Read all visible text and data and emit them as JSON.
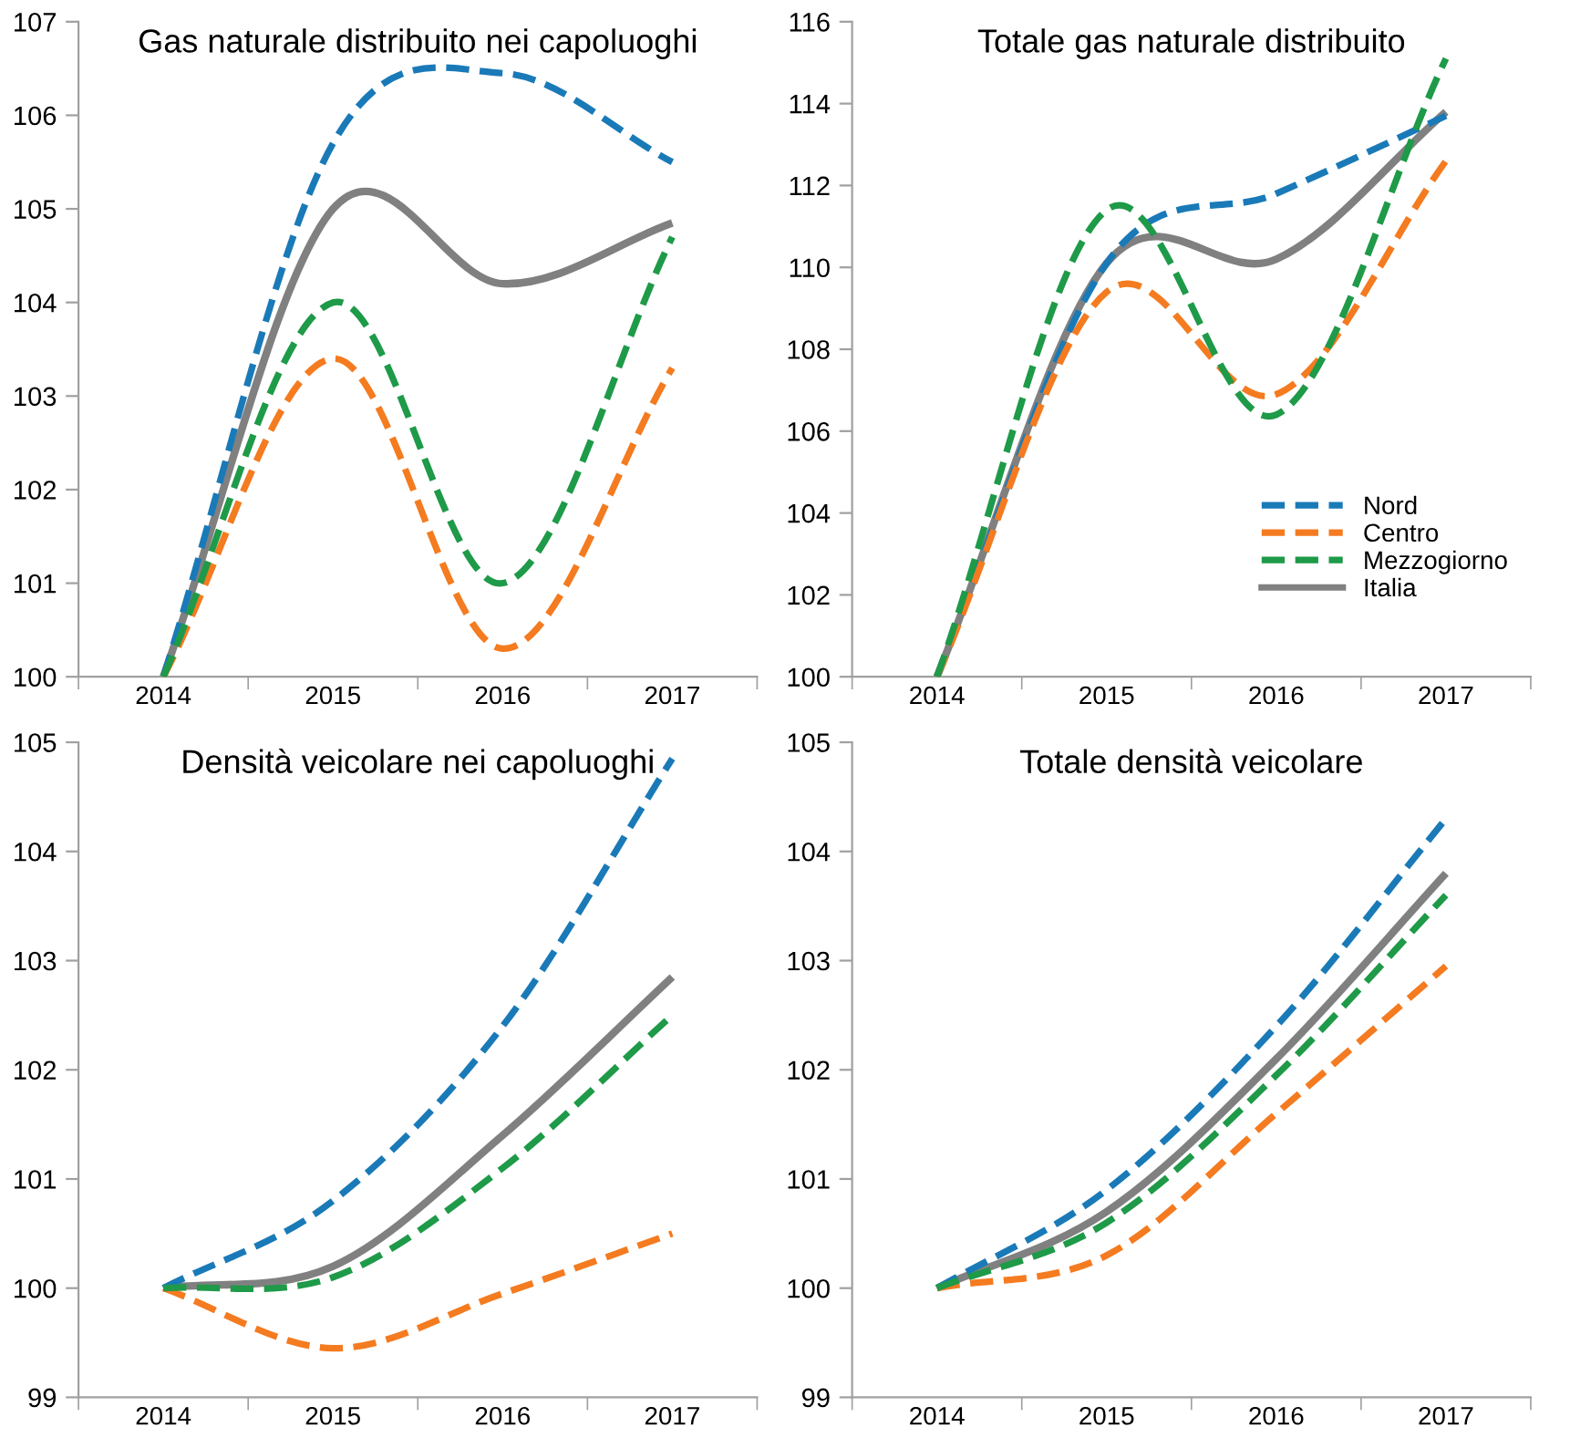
{
  "chart_data": [
    {
      "type": "line",
      "title": "Gas naturale distribuito nei capoluoghi",
      "categories": [
        "2014",
        "2015",
        "2016",
        "2017"
      ],
      "ylim": [
        100,
        107
      ],
      "yticks": [
        100,
        101,
        102,
        103,
        104,
        105,
        106,
        107
      ],
      "grid": false,
      "legend": false,
      "marker": "none",
      "series": [
        {
          "color": "#1a7ab8",
          "line_style": "dashed",
          "values": [
            100,
            105.7,
            106.45,
            105.5
          ]
        },
        {
          "color": "#f47b20",
          "line_style": "dashed",
          "values": [
            100,
            103.4,
            100.3,
            103.3
          ]
        },
        {
          "color": "#1e9a48",
          "line_style": "dashed",
          "values": [
            100,
            104.0,
            101.0,
            104.7
          ]
        },
        {
          "color": "#808080",
          "line_style": "solid",
          "values": [
            100,
            105.0,
            104.2,
            104.85
          ]
        }
      ]
    },
    {
      "type": "line",
      "title": "Totale gas naturale distribuito",
      "categories": [
        "2014",
        "2015",
        "2016",
        "2017"
      ],
      "ylim": [
        100,
        116
      ],
      "yticks": [
        100,
        102,
        104,
        106,
        108,
        110,
        112,
        114,
        116
      ],
      "grid": false,
      "legend": "bottom right",
      "marker": "none",
      "series": [
        {
          "name": "Nord",
          "color": "#1a7ab8",
          "line_style": "dashed",
          "values": [
            100,
            110.1,
            111.8,
            113.7
          ]
        },
        {
          "name": "Centro",
          "color": "#f47b20",
          "line_style": "dashed",
          "values": [
            100,
            109.4,
            106.9,
            112.6
          ]
        },
        {
          "name": "Mezzogiorno",
          "color": "#1e9a48",
          "line_style": "dashed",
          "values": [
            100,
            111.4,
            106.4,
            115.1
          ]
        },
        {
          "name": "Italia",
          "color": "#808080",
          "line_style": "solid",
          "values": [
            100,
            110.1,
            110.2,
            113.8
          ]
        }
      ]
    },
    {
      "type": "line",
      "title": "Densità veicolare nei capoluoghi",
      "categories": [
        "2014",
        "2015",
        "2016",
        "2017"
      ],
      "ylim": [
        99,
        105
      ],
      "yticks": [
        99,
        100,
        101,
        102,
        103,
        104,
        105
      ],
      "grid": false,
      "legend": false,
      "marker": "none",
      "series": [
        {
          "color": "#1a7ab8",
          "line_style": "dashed",
          "values": [
            100,
            100.8,
            102.4,
            104.85
          ]
        },
        {
          "color": "#f47b20",
          "line_style": "dashed",
          "values": [
            100,
            99.45,
            99.95,
            100.5
          ]
        },
        {
          "color": "#1e9a48",
          "line_style": "dashed",
          "values": [
            100,
            100.1,
            101.1,
            102.5
          ]
        },
        {
          "color": "#808080",
          "line_style": "solid",
          "values": [
            100,
            100.2,
            101.4,
            102.85
          ]
        }
      ]
    },
    {
      "type": "line",
      "title": "Totale densità veicolare",
      "categories": [
        "2014",
        "2015",
        "2016",
        "2017"
      ],
      "ylim": [
        99,
        105
      ],
      "yticks": [
        99,
        100,
        101,
        102,
        103,
        104,
        105
      ],
      "grid": false,
      "legend": false,
      "marker": "none",
      "series": [
        {
          "color": "#1a7ab8",
          "line_style": "dashed",
          "values": [
            100,
            100.9,
            102.4,
            104.3
          ]
        },
        {
          "color": "#f47b20",
          "line_style": "dashed",
          "values": [
            100,
            100.3,
            101.6,
            102.95
          ]
        },
        {
          "color": "#1e9a48",
          "line_style": "dashed",
          "values": [
            100,
            100.6,
            101.95,
            103.6
          ]
        },
        {
          "color": "#808080",
          "line_style": "solid",
          "values": [
            100,
            100.7,
            102.1,
            103.8
          ]
        }
      ]
    }
  ]
}
